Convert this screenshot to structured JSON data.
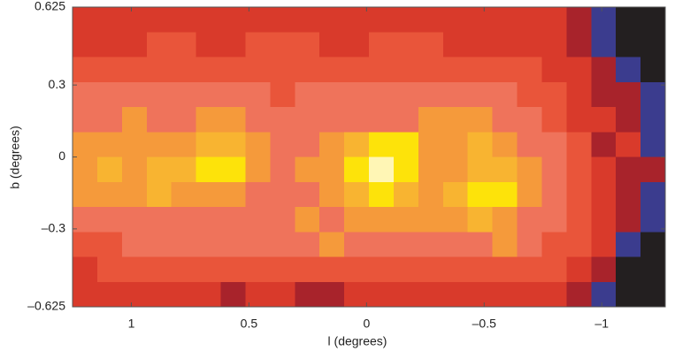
{
  "chart_data": {
    "type": "contour",
    "xlabel": "l (degrees)",
    "ylabel": "b (degrees)",
    "xlim": [
      1.25,
      -1.27
    ],
    "ylim": [
      -0.625,
      0.625
    ],
    "xticks": [
      1,
      0.5,
      0,
      {
        "value": -0.5,
        "label": "–0.5"
      },
      {
        "value": -1,
        "label": "–1"
      }
    ],
    "yticks": [
      {
        "value": -0.625,
        "label": "–0.625"
      },
      {
        "value": -0.3,
        "label": "–0.3"
      },
      0,
      0.3,
      0.625
    ],
    "colors": [
      "#231f20",
      "#3b3c8e",
      "#a8232b",
      "#d93a2b",
      "#e9553a",
      "#ef735b",
      "#f59a3b",
      "#f8b431",
      "#fde30a",
      "#fff6b5"
    ],
    "z": [
      [
        3,
        3,
        3,
        3,
        3,
        3,
        3,
        3,
        3,
        3,
        3,
        3,
        3,
        3,
        3,
        3,
        3,
        3,
        3,
        3,
        2,
        1,
        0,
        0
      ],
      [
        3,
        3,
        3,
        4,
        4,
        3,
        3,
        4,
        4,
        4,
        3,
        3,
        4,
        4,
        4,
        3,
        3,
        3,
        3,
        3,
        2,
        1,
        0,
        0
      ],
      [
        4,
        4,
        4,
        4,
        4,
        4,
        4,
        4,
        4,
        4,
        4,
        4,
        4,
        4,
        4,
        4,
        4,
        4,
        4,
        3,
        3,
        2,
        1,
        0
      ],
      [
        5,
        5,
        5,
        5,
        5,
        5,
        5,
        5,
        4,
        5,
        5,
        5,
        5,
        5,
        5,
        5,
        5,
        5,
        4,
        4,
        3,
        2,
        2,
        1
      ],
      [
        5,
        5,
        6,
        5,
        5,
        6,
        6,
        5,
        5,
        5,
        5,
        5,
        5,
        5,
        6,
        6,
        6,
        5,
        5,
        4,
        3,
        3,
        2,
        1
      ],
      [
        6,
        6,
        6,
        6,
        6,
        7,
        7,
        6,
        5,
        5,
        6,
        7,
        8,
        8,
        6,
        6,
        7,
        6,
        5,
        5,
        4,
        2,
        3,
        1
      ],
      [
        6,
        7,
        6,
        7,
        7,
        8,
        8,
        6,
        5,
        6,
        6,
        8,
        9,
        8,
        6,
        6,
        7,
        7,
        6,
        5,
        4,
        3,
        2,
        2
      ],
      [
        6,
        6,
        6,
        7,
        6,
        6,
        6,
        5,
        5,
        5,
        6,
        7,
        8,
        7,
        6,
        7,
        8,
        8,
        6,
        5,
        4,
        3,
        2,
        1
      ],
      [
        5,
        5,
        5,
        5,
        5,
        5,
        5,
        5,
        5,
        6,
        5,
        6,
        6,
        6,
        6,
        6,
        7,
        6,
        5,
        5,
        4,
        3,
        2,
        1
      ],
      [
        4,
        4,
        5,
        5,
        5,
        5,
        5,
        5,
        5,
        5,
        6,
        5,
        5,
        5,
        5,
        5,
        5,
        6,
        5,
        4,
        4,
        3,
        1,
        0
      ],
      [
        3,
        4,
        4,
        4,
        4,
        4,
        4,
        4,
        4,
        4,
        4,
        4,
        4,
        4,
        4,
        4,
        4,
        4,
        4,
        4,
        3,
        2,
        0,
        0
      ],
      [
        3,
        3,
        3,
        3,
        3,
        3,
        2,
        3,
        3,
        2,
        2,
        3,
        3,
        3,
        3,
        3,
        3,
        3,
        3,
        3,
        2,
        1,
        0,
        0
      ]
    ]
  }
}
